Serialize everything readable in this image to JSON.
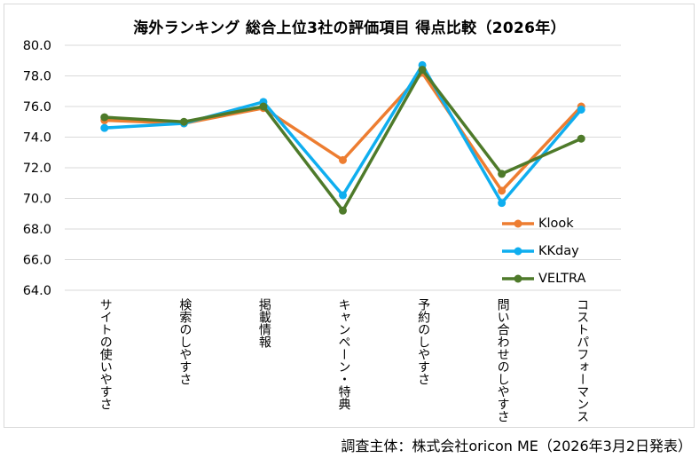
{
  "chart_data": {
    "type": "line",
    "title": "海外ランキング 総合上位3社の評価項目 得点比較（2026年）",
    "xlabel": "",
    "ylabel": "",
    "ylim": [
      64.0,
      80.0
    ],
    "yticks": [
      "80.0",
      "78.0",
      "76.0",
      "74.0",
      "72.0",
      "70.0",
      "68.0",
      "66.0",
      "64.0"
    ],
    "ytick_values": [
      80,
      78,
      76,
      74,
      72,
      70,
      68,
      66,
      64
    ],
    "grid": true,
    "legend_position": "right",
    "categories": [
      "サイトの使いやすさ",
      "検索のしやすさ",
      "掲載情報",
      "キャンペーン・特典",
      "予約のしやすさ",
      "問い合わせのしやすさ",
      "コストパフォーマンス"
    ],
    "series": [
      {
        "name": "Klook",
        "color": "#ED7D31",
        "values": [
          75.1,
          74.9,
          75.9,
          72.5,
          78.2,
          70.5,
          76.0
        ]
      },
      {
        "name": "KKday",
        "color": "#0FAEEF",
        "values": [
          74.6,
          74.9,
          76.3,
          70.2,
          78.7,
          69.7,
          75.8
        ]
      },
      {
        "name": "VELTRA",
        "color": "#4E7A2A",
        "values": [
          75.3,
          75.0,
          76.0,
          69.2,
          78.4,
          71.6,
          73.9
        ]
      }
    ]
  },
  "footer": "調査主体：株式会社oricon ME（2026年3月2日発表）"
}
